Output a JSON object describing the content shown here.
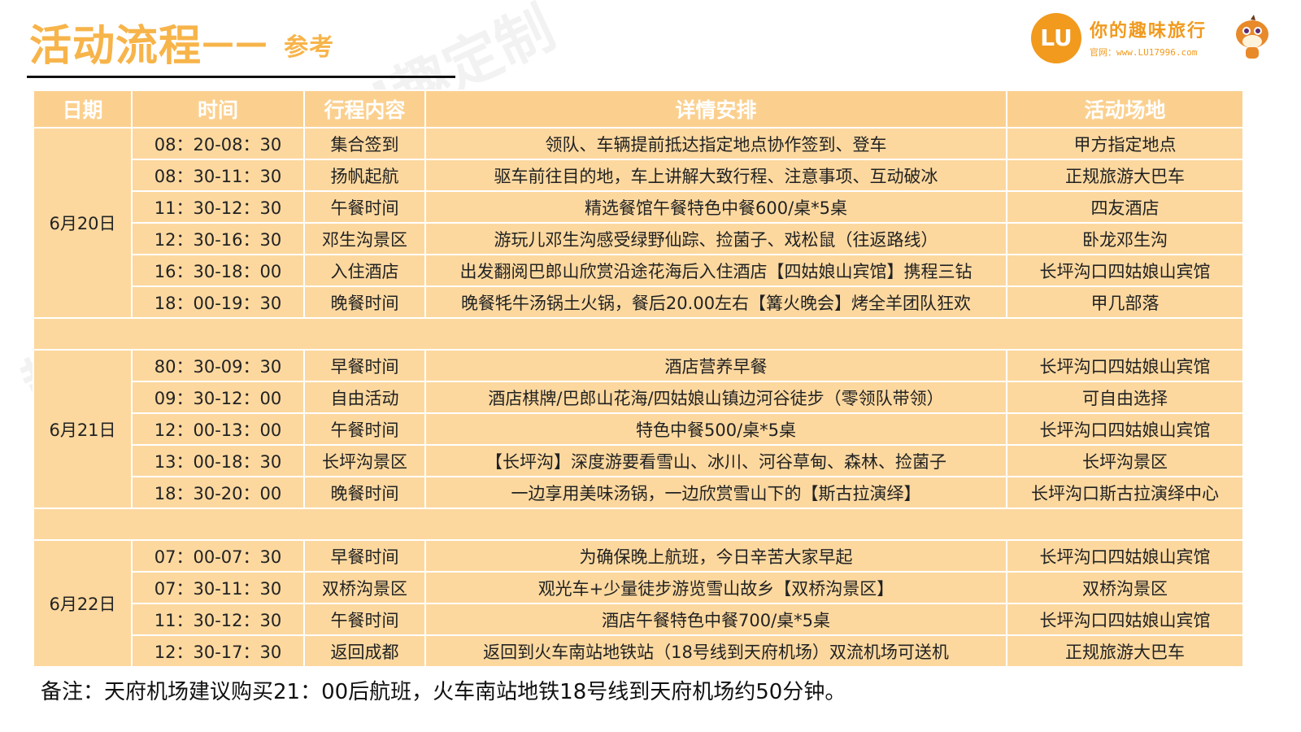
{
  "header": {
    "title": "活动流程",
    "dash": "——",
    "subtitle": "参考"
  },
  "logo": {
    "mark": "LU",
    "name": "你的趣味旅行",
    "url": "官网：www.LU17996.com"
  },
  "colors": {
    "accent": "#f7b44a",
    "header_fill": "#fbd08f",
    "row_fill": "#fcd89f"
  },
  "table": {
    "columns": [
      "日期",
      "时间",
      "行程内容",
      "详情安排",
      "活动场地"
    ],
    "days": [
      {
        "date": "6月20日",
        "rows": [
          [
            "08：20-08：30",
            "集合签到",
            "领队、车辆提前抵达指定地点协作签到、登车",
            "甲方指定地点"
          ],
          [
            "08：30-11：30",
            "扬帆起航",
            "驱车前往目的地，车上讲解大致行程、注意事项、互动破冰",
            "正规旅游大巴车"
          ],
          [
            "11：30-12：30",
            "午餐时间",
            "精选餐馆午餐特色中餐600/桌*5桌",
            "四友酒店"
          ],
          [
            "12：30-16：30",
            "邓生沟景区",
            "游玩儿邓生沟感受绿野仙踪、捡菌子、戏松鼠（往返路线）",
            "卧龙邓生沟"
          ],
          [
            "16：30-18：00",
            "入住酒店",
            "出发翻阅巴郎山欣赏沿途花海后入住酒店【四姑娘山宾馆】携程三钻",
            "长坪沟口四姑娘山宾馆"
          ],
          [
            "18：00-19：30",
            "晚餐时间",
            "晚餐牦牛汤锅土火锅，餐后20.00左右【篝火晚会】烤全羊团队狂欢",
            "甲几部落"
          ]
        ]
      },
      {
        "date": "6月21日",
        "rows": [
          [
            "80：30-09：30",
            "早餐时间",
            "酒店营养早餐",
            "长坪沟口四姑娘山宾馆"
          ],
          [
            "09：30-12：00",
            "自由活动",
            "酒店棋牌/巴郎山花海/四姑娘山镇边河谷徒步（零领队带领）",
            "可自由选择"
          ],
          [
            "12：00-13：00",
            "午餐时间",
            "特色中餐500/桌*5桌",
            "长坪沟口四姑娘山宾馆"
          ],
          [
            "13：00-18：30",
            "长坪沟景区",
            "【长坪沟】深度游要看雪山、冰川、河谷草甸、森林、捡菌子",
            "长坪沟景区"
          ],
          [
            "18：30-20：00",
            "晚餐时间",
            "一边享用美味汤锅，一边欣赏雪山下的【斯古拉演绎】",
            "长坪沟口斯古拉演绎中心"
          ]
        ]
      },
      {
        "date": "6月22日",
        "rows": [
          [
            "07：00-07：30",
            "早餐时间",
            "为确保晚上航班，今日辛苦大家早起",
            "长坪沟口四姑娘山宾馆"
          ],
          [
            "07：30-11：30",
            "双桥沟景区",
            "观光车+少量徒步游览雪山故乡【双桥沟景区】",
            "双桥沟景区"
          ],
          [
            "11：30-12：30",
            "午餐时间",
            "酒店午餐特色中餐700/桌*5桌",
            "长坪沟口四姑娘山宾馆"
          ],
          [
            "12：30-17：30",
            "返回成都",
            "返回到火车南站地铁站（18号线到天府机场）双流机场可送机",
            "正规旅游大巴车"
          ]
        ]
      }
    ]
  },
  "note": "备注：天府机场建议购买21：00后航班，火车南站地铁18号线到天府机场约50分钟。"
}
